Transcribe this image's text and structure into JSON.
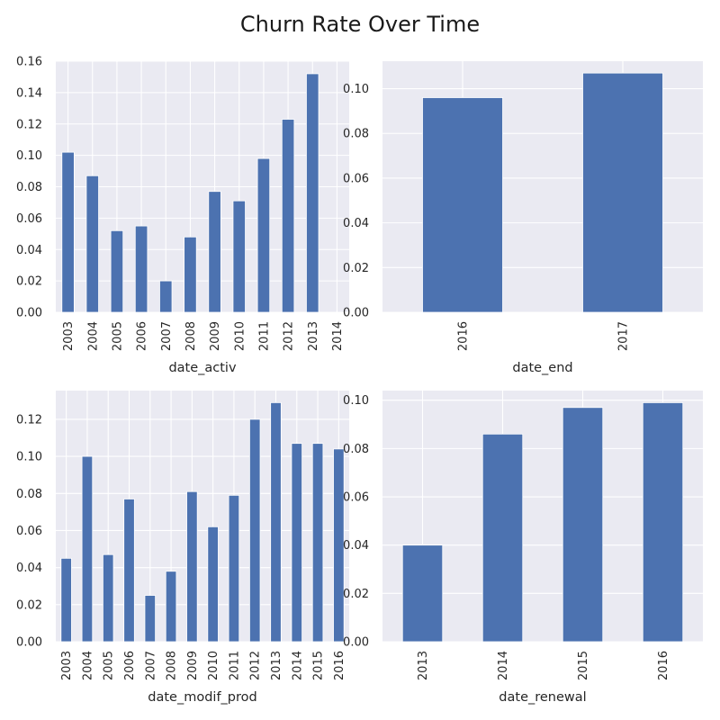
{
  "figure": {
    "title": "Churn Rate Over Time",
    "bar_color": "#4c72b0",
    "panel_bg_color": "#eaeaf2",
    "grid_color": "#ffffff"
  },
  "chart_data": [
    {
      "type": "bar",
      "xlabel": "date_activ",
      "ylabel": "",
      "categories": [
        "2003",
        "2004",
        "2005",
        "2006",
        "2007",
        "2008",
        "2009",
        "2010",
        "2011",
        "2012",
        "2013",
        "2014"
      ],
      "values": [
        0.102,
        0.087,
        0.052,
        0.055,
        0.02,
        0.048,
        0.077,
        0.071,
        0.098,
        0.123,
        0.152,
        0.0
      ],
      "ylim": [
        0,
        0.16
      ],
      "yticks": [
        "0.00",
        "0.02",
        "0.04",
        "0.06",
        "0.08",
        "0.10",
        "0.12",
        "0.14",
        "0.16"
      ],
      "grid": true,
      "legend": "none"
    },
    {
      "type": "bar",
      "xlabel": "date_end",
      "ylabel": "",
      "categories": [
        "2016",
        "2017"
      ],
      "values": [
        0.096,
        0.107
      ],
      "ylim": [
        0,
        0.1123
      ],
      "yticks": [
        "0.00",
        "0.02",
        "0.04",
        "0.06",
        "0.08",
        "0.10"
      ],
      "grid": true,
      "legend": "none"
    },
    {
      "type": "bar",
      "xlabel": "date_modif_prod",
      "ylabel": "",
      "categories": [
        "2003",
        "2004",
        "2005",
        "2006",
        "2007",
        "2008",
        "2009",
        "2010",
        "2011",
        "2012",
        "2013",
        "2014",
        "2015",
        "2016"
      ],
      "values": [
        0.045,
        0.1,
        0.047,
        0.077,
        0.025,
        0.038,
        0.081,
        0.062,
        0.079,
        0.12,
        0.129,
        0.107,
        0.107,
        0.104
      ],
      "ylim": [
        0,
        0.1355
      ],
      "yticks": [
        "0.00",
        "0.02",
        "0.04",
        "0.06",
        "0.08",
        "0.10",
        "0.12"
      ],
      "grid": true,
      "legend": "none"
    },
    {
      "type": "bar",
      "xlabel": "date_renewal",
      "ylabel": "",
      "categories": [
        "2013",
        "2014",
        "2015",
        "2016"
      ],
      "values": [
        0.04,
        0.086,
        0.097,
        0.099
      ],
      "ylim": [
        0,
        0.104
      ],
      "yticks": [
        "0.00",
        "0.02",
        "0.04",
        "0.06",
        "0.08",
        "0.10"
      ],
      "grid": true,
      "legend": "none"
    }
  ]
}
